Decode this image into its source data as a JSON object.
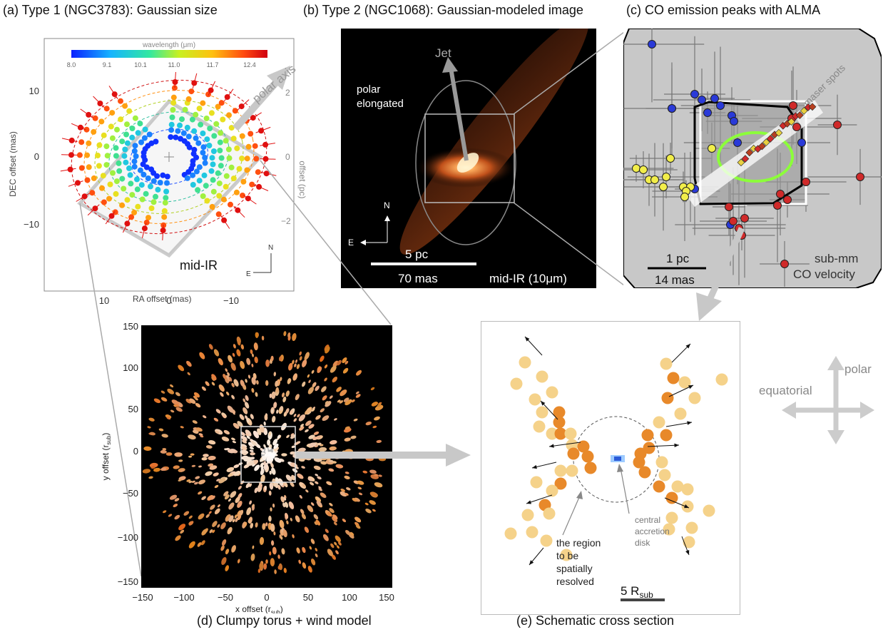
{
  "panel_a": {
    "title": "(a)  Type 1 (NGC3783): Gaussian size",
    "colorbar_label": "wavelength (μm)",
    "colorbar_ticks": [
      "8.0",
      "9.1",
      "10.1",
      "11.0",
      "11.7",
      "12.4"
    ],
    "xlabel": "RA offset (mas)",
    "ylabel": "DEC offset (mas)",
    "right_label": "offset (pc)",
    "x_ticks": [
      "10",
      "0",
      "−10"
    ],
    "y_ticks": [
      "10",
      "0",
      "−10"
    ],
    "right_ticks": [
      "2",
      "0",
      "−2"
    ],
    "polar_axis_label": "polar axis",
    "compass_n": "N",
    "compass_e": "E",
    "band_label": "mid-IR",
    "colors": {
      "frame": "#888888",
      "diamond": "#999999"
    }
  },
  "panel_b": {
    "title": "(b)  Type 2 (NGC1068): Gaussian-modeled image",
    "jet_label": "Jet",
    "polar_label_1": "polar",
    "polar_label_2": "elongated",
    "compass_n": "N",
    "compass_e": "E",
    "scale_pc": "5 pc",
    "scale_mas": "70 mas",
    "band_label": "mid-IR (10μm)",
    "colors": {
      "bg": "#000000",
      "glow": "#d86a2a"
    }
  },
  "panel_c": {
    "title": "(c)  CO emission peaks with ALMA",
    "maser_label": "maser spots",
    "scale_pc": "1 pc",
    "scale_mas": "14 mas",
    "band_label_1": "sub-mm",
    "band_label_2": "CO velocity",
    "colors": {
      "bg": "#c8c8c8",
      "blue": "#2a3ad8",
      "red": "#d02a2a",
      "yellow": "#f2ee4a",
      "green_ring": "#8cff3a"
    }
  },
  "panel_d": {
    "caption": "(d)  Clumpy torus + wind model",
    "xlabel": "x offset (r",
    "xlabel_sub": "sub",
    "ylabel": "y offset (r",
    "ylabel_sub": "sub",
    "ticks": [
      "−150",
      "−100",
      "−50",
      "0",
      "50",
      "100",
      "150"
    ],
    "y_ticks": [
      "150",
      "100",
      "50",
      "0",
      "−50",
      "−100",
      "−150"
    ]
  },
  "panel_e": {
    "caption": "(e)  Schematic cross section",
    "region_label_1": "the region",
    "region_label_2": "to be",
    "region_label_3": "spatially",
    "region_label_4": "resolved",
    "disk_label_1": "central",
    "disk_label_2": "accretion",
    "disk_label_3": "disk",
    "scale_label": "5 R",
    "scale_sub": "sub",
    "colors": {
      "dark_clump": "#e8892a",
      "light_clump": "#f5d28a"
    }
  },
  "orientation": {
    "polar_label": "polar",
    "equatorial_label": "equatorial",
    "color": "#cccccc"
  }
}
